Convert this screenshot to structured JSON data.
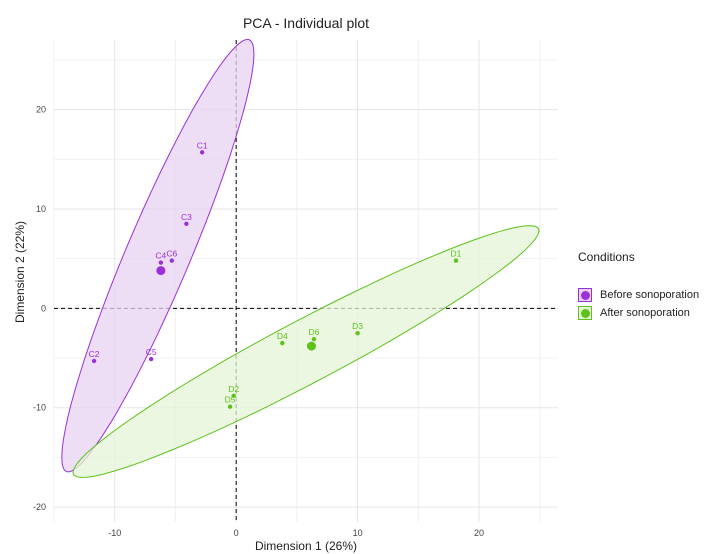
{
  "chart_data": {
    "type": "scatter",
    "title": "PCA - Individual plot",
    "xlabel": "Dimension 1 (26%)",
    "ylabel": "Dimension 2 (22%)",
    "xlim": [
      -15,
      26.5
    ],
    "ylim": [
      -21.5,
      27
    ],
    "xticks": [
      -10,
      0,
      10,
      20
    ],
    "yticks": [
      -20,
      -10,
      0,
      10,
      20
    ],
    "grid": true,
    "reference_lines": {
      "x": 0,
      "y": 0
    },
    "legend": {
      "title": "Conditions",
      "position": "right"
    },
    "series": [
      {
        "name": "Before sonoporation",
        "color": "#9b30d9",
        "fill": "#e7d3f3",
        "points": [
          {
            "label": "C1",
            "x": -2.8,
            "y": 15.7
          },
          {
            "label": "C3",
            "x": -4.1,
            "y": 8.5
          },
          {
            "label": "C6",
            "x": -5.3,
            "y": 4.8
          },
          {
            "label": "C4",
            "x": -6.2,
            "y": 4.6
          },
          {
            "label": "C2",
            "x": -11.7,
            "y": -5.3
          },
          {
            "label": "C5",
            "x": -7.0,
            "y": -5.1
          }
        ],
        "mean": {
          "x": -6.2,
          "y": 3.8
        },
        "ellipse": {
          "cx": -6.45,
          "cy": 5.3,
          "rx": 23.0,
          "ry": 2.7,
          "angle_deg": 71
        }
      },
      {
        "name": "After sonoporation",
        "color": "#5cc31a",
        "fill": "#e6f4d8",
        "points": [
          {
            "label": "D1",
            "x": 18.1,
            "y": 4.8
          },
          {
            "label": "D3",
            "x": 10.0,
            "y": -2.5
          },
          {
            "label": "D6",
            "x": 6.4,
            "y": -3.1
          },
          {
            "label": "D4",
            "x": 3.8,
            "y": -3.5
          },
          {
            "label": "D2",
            "x": -0.2,
            "y": -8.8
          },
          {
            "label": "D5",
            "x": -0.5,
            "y": -9.9
          }
        ],
        "mean": {
          "x": 6.2,
          "y": -3.8
        },
        "ellipse": {
          "cx": 5.75,
          "cy": -4.35,
          "rx": 22.8,
          "ry": 3.0,
          "angle_deg": 33
        }
      }
    ]
  }
}
